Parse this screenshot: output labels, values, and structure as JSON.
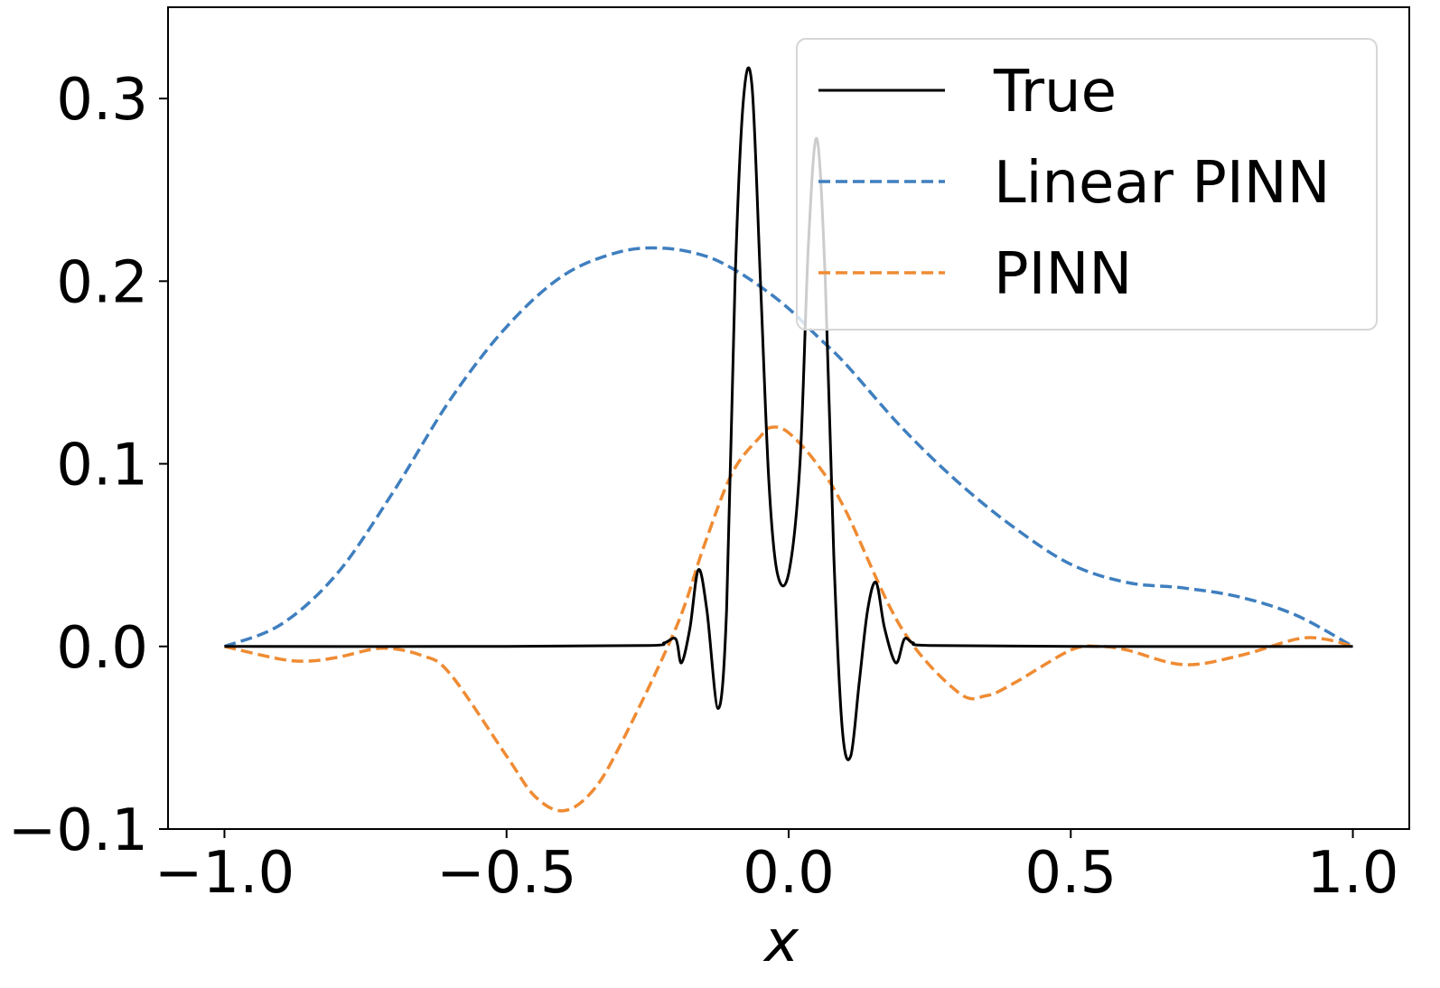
{
  "chart_data": {
    "type": "line",
    "title": "",
    "xlabel": "x",
    "ylabel": "",
    "xlim": [
      -1.1,
      1.1
    ],
    "ylim": [
      -0.1,
      0.35
    ],
    "grid": false,
    "legend_position": "top-right",
    "x_ticks": [
      {
        "value": -1.0,
        "label": "−1.0"
      },
      {
        "value": -0.5,
        "label": "−0.5"
      },
      {
        "value": 0.0,
        "label": "0.0"
      },
      {
        "value": 0.5,
        "label": "0.5"
      },
      {
        "value": 1.0,
        "label": "1.0"
      }
    ],
    "y_ticks": [
      {
        "value": -0.1,
        "label": "−0.1"
      },
      {
        "value": 0.0,
        "label": "0.0"
      },
      {
        "value": 0.1,
        "label": "0.1"
      },
      {
        "value": 0.2,
        "label": "0.2"
      },
      {
        "value": 0.3,
        "label": "0.3"
      }
    ],
    "series": [
      {
        "name": "True",
        "color": "#000000",
        "dash": "solid",
        "x": [
          -1.0,
          -0.5,
          -0.25,
          -0.22,
          -0.2,
          -0.19,
          -0.175,
          -0.16,
          -0.145,
          -0.125,
          -0.11,
          -0.095,
          -0.08,
          -0.065,
          -0.05,
          -0.035,
          -0.02,
          0.0,
          0.02,
          0.035,
          0.05,
          0.065,
          0.08,
          0.095,
          0.11,
          0.125,
          0.14,
          0.155,
          0.17,
          0.19,
          0.205,
          0.22,
          0.25,
          0.5,
          1.0
        ],
        "y": [
          0.0,
          0.0,
          0.0005,
          0.002,
          0.004,
          -0.009,
          0.01,
          0.042,
          0.02,
          -0.034,
          0.02,
          0.2,
          0.3,
          0.307,
          0.2,
          0.09,
          0.04,
          0.04,
          0.1,
          0.22,
          0.278,
          0.2,
          0.05,
          -0.045,
          -0.06,
          -0.02,
          0.02,
          0.035,
          0.01,
          -0.009,
          0.004,
          0.002,
          0.0005,
          0.0,
          0.0
        ]
      },
      {
        "name": "Linear PINN",
        "color": "#3f7fbf",
        "dash": "dashed",
        "x": [
          -1.0,
          -0.9,
          -0.8,
          -0.7,
          -0.6,
          -0.5,
          -0.4,
          -0.3,
          -0.22,
          -0.15,
          -0.1,
          -0.05,
          0.0,
          0.05,
          0.1,
          0.2,
          0.3,
          0.4,
          0.5,
          0.6,
          0.7,
          0.8,
          0.9,
          1.0
        ],
        "y": [
          0.0,
          0.012,
          0.04,
          0.085,
          0.135,
          0.175,
          0.203,
          0.216,
          0.218,
          0.214,
          0.207,
          0.197,
          0.185,
          0.17,
          0.155,
          0.12,
          0.09,
          0.065,
          0.045,
          0.035,
          0.032,
          0.027,
          0.017,
          0.0
        ]
      },
      {
        "name": "PINN",
        "color": "#ef8b33",
        "dash": "dashed",
        "x": [
          -1.0,
          -0.9,
          -0.85,
          -0.8,
          -0.72,
          -0.65,
          -0.6,
          -0.5,
          -0.45,
          -0.4,
          -0.35,
          -0.3,
          -0.2,
          -0.15,
          -0.1,
          -0.05,
          -0.03,
          0.0,
          0.05,
          0.1,
          0.2,
          0.3,
          0.35,
          0.4,
          0.5,
          0.55,
          0.6,
          0.7,
          0.8,
          0.9,
          0.95,
          1.0
        ],
        "y": [
          0.0,
          -0.007,
          -0.008,
          -0.006,
          -0.001,
          -0.005,
          -0.015,
          -0.06,
          -0.082,
          -0.09,
          -0.08,
          -0.055,
          0.01,
          0.055,
          0.095,
          0.115,
          0.12,
          0.117,
          0.1,
          0.075,
          0.01,
          -0.025,
          -0.027,
          -0.02,
          -0.002,
          0.0,
          -0.002,
          -0.01,
          -0.005,
          0.004,
          0.004,
          0.0
        ]
      }
    ]
  }
}
